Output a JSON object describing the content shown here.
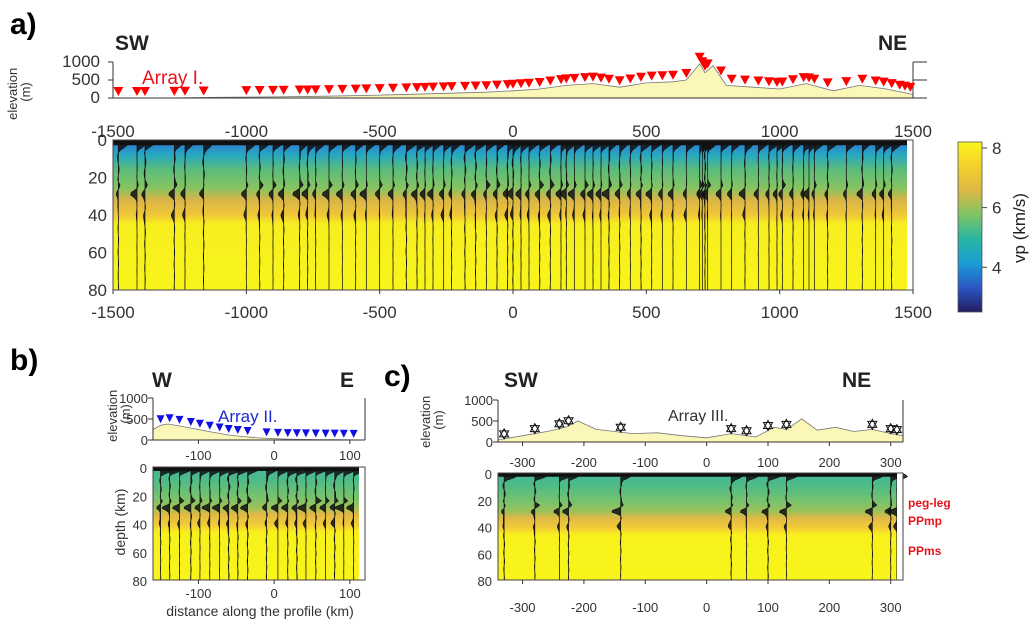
{
  "colors": {
    "elevation_fill": "#fbf7b8",
    "array_I_marker": "#ff0000",
    "array_II_marker": "#1010e0",
    "array_III_marker": "#ffffff",
    "phase_label": "#e8141b"
  },
  "colorbar": {
    "label": "vp (km/s)",
    "ticks": [
      4,
      6,
      8
    ],
    "range": [
      2.5,
      8.2
    ],
    "stops": [
      "#241c5e",
      "#2a56c4",
      "#1a9dd6",
      "#28b5a2",
      "#7dc466",
      "#ddb844",
      "#f4cf2c",
      "#f9f61a"
    ]
  },
  "chart_data": [
    {
      "id": "a",
      "panel_label": "a)",
      "type": "profile",
      "left_label": "SW",
      "right_label": "NE",
      "array_label": "Array I.",
      "elevation": {
        "ylabel": "elevation\n(m)",
        "yticks": [
          "1000",
          "500",
          "0"
        ],
        "ylim": [
          0,
          1000
        ],
        "xlim": [
          -1500,
          1500
        ],
        "x": [
          -1500,
          -1300,
          -1100,
          -900,
          -700,
          -500,
          -300,
          -100,
          0,
          100,
          200,
          300,
          400,
          500,
          600,
          650,
          700,
          720,
          750,
          800,
          900,
          1000,
          1100,
          1200,
          1300,
          1400,
          1500
        ],
        "y": [
          0,
          0,
          20,
          30,
          50,
          80,
          120,
          160,
          200,
          250,
          350,
          400,
          300,
          420,
          450,
          500,
          950,
          700,
          900,
          350,
          300,
          250,
          400,
          200,
          350,
          250,
          100
        ]
      },
      "stations_x": [
        -1480,
        -1410,
        -1380,
        -1270,
        -1230,
        -1160,
        -1000,
        -950,
        -900,
        -860,
        -800,
        -770,
        -740,
        -690,
        -640,
        -590,
        -550,
        -500,
        -450,
        -400,
        -360,
        -330,
        -300,
        -260,
        -230,
        -180,
        -140,
        -100,
        -60,
        -20,
        0,
        30,
        60,
        100,
        140,
        180,
        200,
        230,
        270,
        300,
        330,
        360,
        400,
        440,
        480,
        520,
        560,
        600,
        650,
        700,
        710,
        720,
        730,
        780,
        820,
        870,
        920,
        960,
        990,
        1010,
        1050,
        1090,
        1110,
        1130,
        1180,
        1250,
        1310,
        1360,
        1390,
        1420,
        1450,
        1470,
        1490
      ],
      "section": {
        "xlim": [
          -1500,
          1500
        ],
        "xticks": [
          -1500,
          -1000,
          -500,
          0,
          500,
          1000,
          1500
        ],
        "ylim": [
          0,
          80
        ],
        "yticks": [
          0,
          20,
          40,
          60,
          80
        ],
        "ylabel": ""
      }
    },
    {
      "id": "b",
      "panel_label": "b)",
      "type": "profile",
      "left_label": "W",
      "right_label": "E",
      "array_label": "Array II.",
      "elevation": {
        "ylabel": "elevation\n(m)",
        "yticks": [
          "1000",
          "500",
          "0"
        ],
        "ylim": [
          0,
          1000
        ],
        "xlim": [
          -160,
          120
        ],
        "x": [
          -160,
          -150,
          -140,
          -120,
          -100,
          -80,
          -60,
          -40,
          -20,
          0,
          20,
          40,
          60,
          80,
          100,
          120
        ],
        "y": [
          250,
          350,
          380,
          320,
          250,
          180,
          120,
          80,
          50,
          30,
          20,
          15,
          10,
          8,
          5,
          0
        ]
      },
      "stations_x": [
        -150,
        -138,
        -125,
        -110,
        -98,
        -85,
        -72,
        -60,
        -48,
        -35,
        -10,
        5,
        18,
        30,
        42,
        55,
        68,
        80,
        92,
        105
      ],
      "section": {
        "xlim": [
          -160,
          120
        ],
        "xticks": [
          -100,
          0,
          100
        ],
        "ylim": [
          0,
          80
        ],
        "yticks": [
          0,
          20,
          40,
          60,
          80
        ],
        "ylabel": "depth (km)",
        "xlabel": "distance along the profile (km)"
      }
    },
    {
      "id": "c",
      "panel_label": "c)",
      "type": "profile",
      "left_label": "SW",
      "right_label": "NE",
      "array_label": "Array III.",
      "elevation": {
        "ylabel": "elevation\n(m)",
        "yticks": [
          "1000",
          "500",
          "0"
        ],
        "ylim": [
          0,
          1000
        ],
        "xlim": [
          -340,
          320
        ],
        "x": [
          -340,
          -300,
          -260,
          -230,
          -210,
          -180,
          -150,
          -120,
          -80,
          -40,
          0,
          40,
          80,
          110,
          130,
          155,
          180,
          210,
          240,
          270,
          300,
          320
        ],
        "y": [
          50,
          150,
          250,
          350,
          500,
          300,
          250,
          200,
          220,
          150,
          100,
          200,
          120,
          350,
          300,
          550,
          280,
          350,
          250,
          300,
          200,
          150
        ]
      },
      "stations_x": [
        -330,
        -280,
        -240,
        -225,
        -140,
        40,
        65,
        100,
        130,
        270,
        300,
        310
      ],
      "section": {
        "xlim": [
          -340,
          320
        ],
        "xticks": [
          -300,
          -200,
          -100,
          0,
          100,
          200,
          300
        ],
        "ylim": [
          0,
          80
        ],
        "yticks": [
          0,
          20,
          40,
          60,
          80
        ],
        "ylabel": ""
      },
      "phase_labels": [
        {
          "text": "peg-leg",
          "depth": 25
        },
        {
          "text": "PPmp",
          "depth": 40
        },
        {
          "text": "PPms",
          "depth": 62
        }
      ]
    }
  ]
}
